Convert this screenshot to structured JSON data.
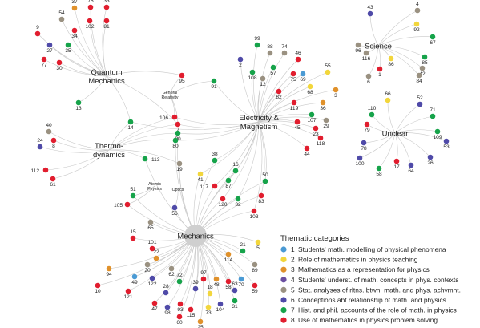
{
  "palette": {
    "1": "#4a9ad4",
    "2": "#f2d63c",
    "3": "#e0912b",
    "4": "#6b4fa0",
    "5": "#9a9181",
    "6": "#4f4aa8",
    "7": "#16a34a",
    "8": "#e11d2e",
    "hub": "#cfcfcf",
    "edge": "#c8c8c8",
    "text": "#222222"
  },
  "hubs": [
    {
      "id": "qm",
      "label": "Quantum\nMechanics",
      "size": "big"
    },
    {
      "id": "em",
      "label": "Electricity &\nMagnetism",
      "size": "big"
    },
    {
      "id": "th",
      "label": "Thermo-\ndynamics",
      "size": "big"
    },
    {
      "id": "mech",
      "label": "Mechanics",
      "size": "big"
    },
    {
      "id": "sci",
      "label": "Science",
      "size": "big"
    },
    {
      "id": "unc",
      "label": "Unclear",
      "size": "big"
    },
    {
      "id": "gr",
      "label": "General\nRelativity",
      "size": "small"
    },
    {
      "id": "ap",
      "label": "Atomic\nPhysics",
      "size": "small"
    },
    {
      "id": "op",
      "label": "Optics",
      "size": "small"
    }
  ],
  "nodes": [
    {
      "id": "37",
      "c": 3,
      "hubs": [
        "qm"
      ]
    },
    {
      "id": "76",
      "c": 8,
      "hubs": [
        "qm"
      ]
    },
    {
      "id": "33",
      "c": 8,
      "hubs": [
        "qm"
      ]
    },
    {
      "id": "54",
      "c": 5,
      "hubs": [
        "qm"
      ]
    },
    {
      "id": "102",
      "c": 8,
      "hubs": [
        "qm"
      ]
    },
    {
      "id": "81",
      "c": 8,
      "hubs": [
        "qm"
      ]
    },
    {
      "id": "34",
      "c": 8,
      "hubs": [
        "qm"
      ]
    },
    {
      "id": "9",
      "c": 8,
      "hubs": [
        "qm"
      ]
    },
    {
      "id": "27",
      "c": 6,
      "hubs": [
        "qm"
      ]
    },
    {
      "id": "35",
      "c": 7,
      "hubs": [
        "qm"
      ]
    },
    {
      "id": "77",
      "c": 8,
      "hubs": [
        "qm"
      ]
    },
    {
      "id": "30",
      "c": 8,
      "hubs": [
        "qm"
      ]
    },
    {
      "id": "13",
      "c": 7,
      "hubs": [
        "qm"
      ]
    },
    {
      "id": "99",
      "c": 7,
      "hubs": [
        "em"
      ]
    },
    {
      "id": "88",
      "c": 5,
      "hubs": [
        "em"
      ]
    },
    {
      "id": "74",
      "c": 5,
      "hubs": [
        "em"
      ]
    },
    {
      "id": "46",
      "c": 8,
      "hubs": [
        "em"
      ]
    },
    {
      "id": "2",
      "c": 6,
      "hubs": [
        "em"
      ]
    },
    {
      "id": "108",
      "c": 7,
      "hubs": [
        "em"
      ]
    },
    {
      "id": "57",
      "c": 7,
      "hubs": [
        "em"
      ]
    },
    {
      "id": "75",
      "c": 8,
      "hubs": [
        "em"
      ]
    },
    {
      "id": "69",
      "c": 1,
      "hubs": [
        "em"
      ]
    },
    {
      "id": "55",
      "c": 2,
      "hubs": [
        "em"
      ]
    },
    {
      "id": "12",
      "c": 5,
      "hubs": [
        "em"
      ]
    },
    {
      "id": "68",
      "c": 2,
      "hubs": [
        "em"
      ]
    },
    {
      "id": "3",
      "c": 3,
      "hubs": [
        "em"
      ]
    },
    {
      "id": "82",
      "c": 8,
      "hubs": [
        "em"
      ]
    },
    {
      "id": "119",
      "c": 8,
      "hubs": [
        "em"
      ]
    },
    {
      "id": "36",
      "c": 3,
      "hubs": [
        "em"
      ]
    },
    {
      "id": "107",
      "c": 7,
      "hubs": [
        "em"
      ]
    },
    {
      "id": "29",
      "c": 5,
      "hubs": [
        "em"
      ]
    },
    {
      "id": "45",
      "c": 8,
      "hubs": [
        "em"
      ]
    },
    {
      "id": "23",
      "c": 8,
      "hubs": [
        "em"
      ]
    },
    {
      "id": "118",
      "c": 8,
      "hubs": [
        "em"
      ]
    },
    {
      "id": "44",
      "c": 8,
      "hubs": [
        "em"
      ]
    },
    {
      "id": "91",
      "c": 7,
      "hubs": [
        "em",
        "gr"
      ]
    },
    {
      "id": "95",
      "c": 8,
      "hubs": [
        "qm",
        "gr"
      ]
    },
    {
      "id": "106",
      "c": 8,
      "hubs": [
        "gr",
        "em",
        "th"
      ]
    },
    {
      "id": "7",
      "c": 8,
      "hubs": [
        "gr",
        "em",
        "th",
        "qm"
      ]
    },
    {
      "id": "90",
      "c": 7,
      "hubs": [
        "em",
        "th",
        "mech"
      ]
    },
    {
      "id": "80",
      "c": 7,
      "hubs": [
        "em",
        "th",
        "mech"
      ]
    },
    {
      "id": "14",
      "c": 7,
      "hubs": [
        "qm",
        "th",
        "em"
      ]
    },
    {
      "id": "40",
      "c": 5,
      "hubs": [
        "th"
      ]
    },
    {
      "id": "8",
      "c": 8,
      "hubs": [
        "th"
      ]
    },
    {
      "id": "24",
      "c": 6,
      "hubs": [
        "th"
      ]
    },
    {
      "id": "112",
      "c": 8,
      "hubs": [
        "th"
      ]
    },
    {
      "id": "61",
      "c": 8,
      "hubs": [
        "th"
      ]
    },
    {
      "id": "113",
      "c": 7,
      "hubs": [
        "th",
        "mech"
      ]
    },
    {
      "id": "19",
      "c": 5,
      "hubs": [
        "mech",
        "th"
      ]
    },
    {
      "id": "51",
      "c": 7,
      "hubs": [
        "mech",
        "ap"
      ]
    },
    {
      "id": "105",
      "c": 8,
      "hubs": [
        "mech",
        "ap"
      ]
    },
    {
      "id": "56",
      "c": 6,
      "hubs": [
        "mech",
        "op"
      ]
    },
    {
      "id": "65",
      "c": 5,
      "hubs": [
        "mech"
      ]
    },
    {
      "id": "41",
      "c": 2,
      "hubs": [
        "mech",
        "em"
      ]
    },
    {
      "id": "38",
      "c": 7,
      "hubs": [
        "mech",
        "em"
      ]
    },
    {
      "id": "16",
      "c": 7,
      "hubs": [
        "mech",
        "em"
      ]
    },
    {
      "id": "117",
      "c": 8,
      "hubs": [
        "mech",
        "em"
      ]
    },
    {
      "id": "87",
      "c": 7,
      "hubs": [
        "mech",
        "em"
      ]
    },
    {
      "id": "120",
      "c": 8,
      "hubs": [
        "mech",
        "em"
      ]
    },
    {
      "id": "32",
      "c": 7,
      "hubs": [
        "mech",
        "em"
      ]
    },
    {
      "id": "50",
      "c": 7,
      "hubs": [
        "mech",
        "em"
      ]
    },
    {
      "id": "83",
      "c": 8,
      "hubs": [
        "mech",
        "em"
      ]
    },
    {
      "id": "103",
      "c": 8,
      "hubs": [
        "mech",
        "em"
      ]
    },
    {
      "id": "4",
      "c": 5,
      "hubs": [
        "sci"
      ]
    },
    {
      "id": "43",
      "c": 6,
      "hubs": [
        "sci"
      ]
    },
    {
      "id": "92",
      "c": 2,
      "hubs": [
        "sci"
      ]
    },
    {
      "id": "67",
      "c": 7,
      "hubs": [
        "sci"
      ]
    },
    {
      "id": "96",
      "c": 5,
      "hubs": [
        "sci"
      ]
    },
    {
      "id": "116",
      "c": 5,
      "hubs": [
        "sci"
      ]
    },
    {
      "id": "86",
      "c": 2,
      "hubs": [
        "sci"
      ]
    },
    {
      "id": "85",
      "c": 7,
      "hubs": [
        "sci"
      ]
    },
    {
      "id": "1",
      "c": 8,
      "hubs": [
        "sci"
      ]
    },
    {
      "id": "6",
      "c": 5,
      "hubs": [
        "sci"
      ]
    },
    {
      "id": "42",
      "c": 5,
      "hubs": [
        "sci"
      ]
    },
    {
      "id": "84",
      "c": 5,
      "hubs": [
        "sci"
      ]
    },
    {
      "id": "66",
      "c": 2,
      "hubs": [
        "unc"
      ]
    },
    {
      "id": "52",
      "c": 6,
      "hubs": [
        "unc"
      ]
    },
    {
      "id": "110",
      "c": 7,
      "hubs": [
        "unc"
      ]
    },
    {
      "id": "71",
      "c": 7,
      "hubs": [
        "unc"
      ]
    },
    {
      "id": "79",
      "c": 8,
      "hubs": [
        "unc"
      ]
    },
    {
      "id": "109",
      "c": 7,
      "hubs": [
        "unc"
      ]
    },
    {
      "id": "53",
      "c": 6,
      "hubs": [
        "unc"
      ]
    },
    {
      "id": "78",
      "c": 6,
      "hubs": [
        "unc"
      ]
    },
    {
      "id": "26",
      "c": 6,
      "hubs": [
        "unc"
      ]
    },
    {
      "id": "100",
      "c": 6,
      "hubs": [
        "unc"
      ]
    },
    {
      "id": "17",
      "c": 8,
      "hubs": [
        "unc"
      ]
    },
    {
      "id": "64",
      "c": 6,
      "hubs": [
        "unc"
      ]
    },
    {
      "id": "58",
      "c": 7,
      "hubs": [
        "unc"
      ]
    },
    {
      "id": "15",
      "c": 8,
      "hubs": [
        "mech"
      ]
    },
    {
      "id": "101",
      "c": 8,
      "hubs": [
        "mech"
      ]
    },
    {
      "id": "114",
      "c": 3,
      "hubs": [
        "mech"
      ]
    },
    {
      "id": "21",
      "c": 7,
      "hubs": [
        "mech"
      ]
    },
    {
      "id": "5",
      "c": 2,
      "hubs": [
        "mech"
      ]
    },
    {
      "id": "22",
      "c": 3,
      "hubs": [
        "mech"
      ]
    },
    {
      "id": "20",
      "c": 5,
      "hubs": [
        "mech"
      ]
    },
    {
      "id": "62",
      "c": 5,
      "hubs": [
        "mech"
      ]
    },
    {
      "id": "89",
      "c": 5,
      "hubs": [
        "mech"
      ]
    },
    {
      "id": "94",
      "c": 3,
      "hubs": [
        "mech"
      ]
    },
    {
      "id": "49",
      "c": 1,
      "hubs": [
        "mech"
      ]
    },
    {
      "id": "122",
      "c": 6,
      "hubs": [
        "mech"
      ]
    },
    {
      "id": "72",
      "c": 7,
      "hubs": [
        "mech"
      ]
    },
    {
      "id": "97",
      "c": 8,
      "hubs": [
        "mech"
      ]
    },
    {
      "id": "48",
      "c": 3,
      "hubs": [
        "mech"
      ]
    },
    {
      "id": "70",
      "c": 1,
      "hubs": [
        "mech"
      ]
    },
    {
      "id": "58b",
      "label": "58",
      "c": 8,
      "hubs": [
        "mech"
      ]
    },
    {
      "id": "10",
      "c": 8,
      "hubs": [
        "mech"
      ]
    },
    {
      "id": "121",
      "c": 8,
      "hubs": [
        "mech"
      ]
    },
    {
      "id": "28",
      "c": 6,
      "hubs": [
        "mech"
      ]
    },
    {
      "id": "39",
      "c": 6,
      "hubs": [
        "mech"
      ]
    },
    {
      "id": "18",
      "c": 2,
      "hubs": [
        "mech"
      ]
    },
    {
      "id": "63",
      "c": 6,
      "hubs": [
        "mech"
      ]
    },
    {
      "id": "59",
      "c": 8,
      "hubs": [
        "mech"
      ]
    },
    {
      "id": "47",
      "c": 8,
      "hubs": [
        "mech"
      ]
    },
    {
      "id": "98",
      "c": 6,
      "hubs": [
        "mech"
      ]
    },
    {
      "id": "93",
      "c": 8,
      "hubs": [
        "mech"
      ]
    },
    {
      "id": "115",
      "c": 8,
      "hubs": [
        "mech"
      ]
    },
    {
      "id": "73",
      "c": 2,
      "hubs": [
        "mech"
      ]
    },
    {
      "id": "104",
      "c": 6,
      "hubs": [
        "mech"
      ]
    },
    {
      "id": "31",
      "c": 7,
      "hubs": [
        "mech"
      ]
    },
    {
      "id": "60",
      "c": 8,
      "hubs": [
        "mech"
      ]
    },
    {
      "id": "25",
      "c": 3,
      "hubs": [
        "mech"
      ]
    }
  ],
  "legend": {
    "title": "Thematic categories",
    "items": [
      {
        "num": "1",
        "text": "Students' math. modelling of physical phenomena",
        "c": 1
      },
      {
        "num": "2",
        "text": "Role of mathematics in physics teaching",
        "c": 2
      },
      {
        "num": "3",
        "text": "Mathematics as a representation for physics",
        "c": 3
      },
      {
        "num": "4",
        "text": "Students' underst. of math. concepts in phys. contexts",
        "c": 4
      },
      {
        "num": "5",
        "text": "Stat. analyses of rltns. btwn. math. and phys. achvmnt.",
        "c": 5
      },
      {
        "num": "6",
        "text": "Conceptions abt relationship of math. and physics",
        "c": 6
      },
      {
        "num": "7",
        "text": "Hist. and phil. accounts of the role of math. in physics",
        "c": 7
      },
      {
        "num": "8",
        "text": "Use of mathematics in physics problem solving",
        "c": 8
      }
    ]
  }
}
